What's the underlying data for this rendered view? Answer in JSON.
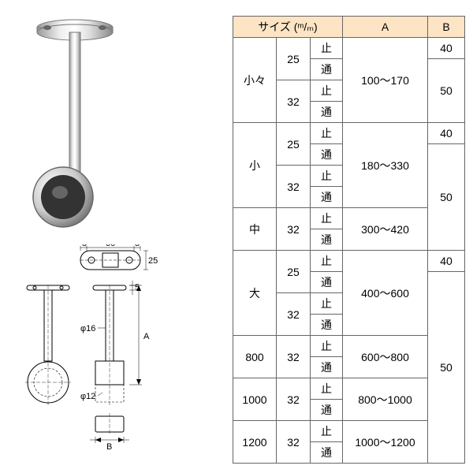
{
  "headers": {
    "size": "サイズ (ᵐ/ₘ)",
    "a": "A",
    "b": "B"
  },
  "product": {
    "name": "ceiling-bracket"
  },
  "diagram": {
    "top_dim_8_left": "8",
    "top_dim_60": "60",
    "top_dim_8_right": "8",
    "top_dim_25": "25",
    "phi16": "φ16",
    "phi12": "φ12",
    "dim_5": "5",
    "dim_A": "A",
    "dim_B": "B"
  },
  "rows": [
    {
      "s1": "小々",
      "s1_span": 4,
      "s2": "25",
      "s2_span": 2,
      "s3": "止",
      "a": "100～170",
      "a_span": 4,
      "b": "40"
    },
    {
      "s3": "通",
      "b": "50",
      "b_span": 3
    },
    {
      "s2": "32",
      "s2_span": 2,
      "s3": "止"
    },
    {
      "s3": "通"
    },
    {
      "s1": "小",
      "s1_span": 4,
      "s2": "25",
      "s2_span": 2,
      "s3": "止",
      "a": "180～330",
      "a_span": 4,
      "b": "40"
    },
    {
      "s3": "通",
      "b": "50",
      "b_span": 5
    },
    {
      "s2": "32",
      "s2_span": 2,
      "s3": "止"
    },
    {
      "s3": "通"
    },
    {
      "s1": "中",
      "s1_span": 2,
      "s2": "32",
      "s2_span": 2,
      "s3": "止",
      "a": "300～420",
      "a_span": 2
    },
    {
      "s3": "通"
    },
    {
      "s1": "大",
      "s1_span": 4,
      "s2": "25",
      "s2_span": 2,
      "s3": "止",
      "a": "400～600",
      "a_span": 4,
      "b": "40"
    },
    {
      "s3": "通",
      "b": "50",
      "b_span": 9
    },
    {
      "s2": "32",
      "s2_span": 2,
      "s3": "止"
    },
    {
      "s3": "通"
    },
    {
      "s1": "800",
      "s1_span": 2,
      "s2": "32",
      "s2_span": 2,
      "s3": "止",
      "a": "600～800",
      "a_span": 2
    },
    {
      "s3": "通"
    },
    {
      "s1": "1000",
      "s1_span": 2,
      "s2": "32",
      "s2_span": 2,
      "s3": "止",
      "a": "800～1000",
      "a_span": 2
    },
    {
      "s3": "通"
    },
    {
      "s1": "1200",
      "s1_span": 2,
      "s2": "32",
      "s2_span": 2,
      "s3": "止",
      "a": "1000～1200",
      "a_span": 2
    },
    {
      "s3": "通"
    }
  ]
}
